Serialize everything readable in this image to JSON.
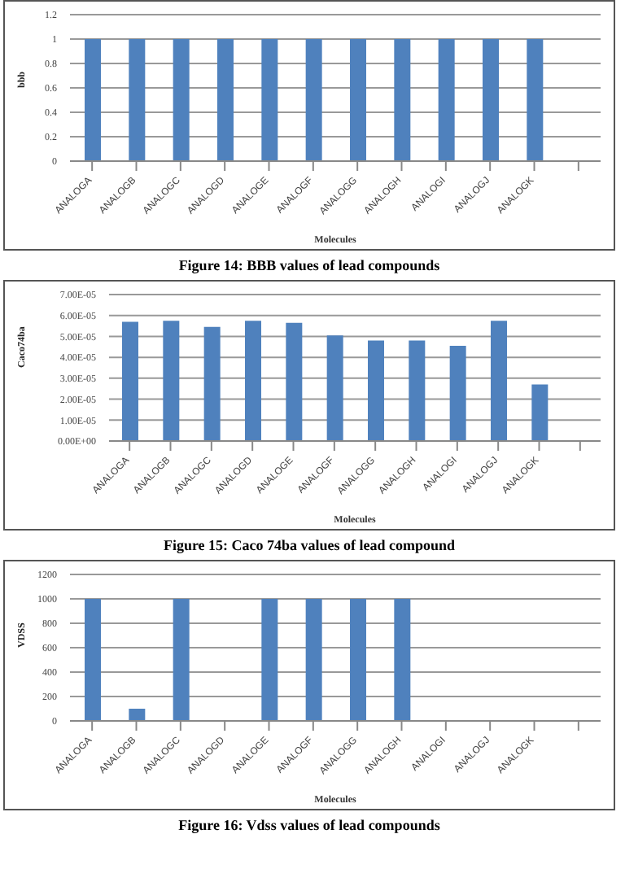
{
  "chart_data": [
    {
      "type": "bar",
      "ylabel": "bbb",
      "xlabel": "Molecules",
      "categories": [
        "ANALOGA",
        "ANALOGB",
        "ANALOGC",
        "ANALOGD",
        "ANALOGE",
        "ANALOGF",
        "ANALOGG",
        "ANALOGH",
        "ANALOGI",
        "ANALOGJ",
        "ANALOGK",
        null
      ],
      "values": [
        1,
        1,
        1,
        1,
        1,
        1,
        1,
        1,
        1,
        1,
        1,
        null
      ],
      "color": "#4f81bd",
      "ylim": [
        0,
        1.2
      ],
      "yticks": [
        0,
        0.2,
        0.4,
        0.6,
        0.8,
        1,
        1.2
      ],
      "grid": "y",
      "legend": false,
      "annotations": [
        "Figure 14: BBB values of lead compounds"
      ]
    },
    {
      "type": "bar",
      "ylabel": "Caco74ba",
      "xlabel": "Molecules",
      "categories": [
        "ANALOGA",
        "ANALOGB",
        "ANALOGC",
        "ANALOGD",
        "ANALOGE",
        "ANALOGF",
        "ANALOGG",
        "ANALOGH",
        "ANALOGI",
        "ANALOGJ",
        "ANALOGK",
        null
      ],
      "values": [
        5.7e-05,
        5.75e-05,
        5.45e-05,
        5.75e-05,
        5.65e-05,
        5.05e-05,
        4.8e-05,
        4.8e-05,
        4.55e-05,
        5.75e-05,
        2.7e-05,
        null
      ],
      "color": "#4f81bd",
      "ylim": [
        0,
        7e-05
      ],
      "yticks": [
        {
          "value": 0,
          "label": "0.00E+00"
        },
        {
          "value": 1e-05,
          "label": "1.00E-05"
        },
        {
          "value": 2e-05,
          "label": "2.00E-05"
        },
        {
          "value": 3e-05,
          "label": "3.00E-05"
        },
        {
          "value": 4e-05,
          "label": "4.00E-05"
        },
        {
          "value": 5e-05,
          "label": "5.00E-05"
        },
        {
          "value": 6e-05,
          "label": "6.00E-05"
        },
        {
          "value": 7e-05,
          "label": "7.00E-05"
        }
      ],
      "grid": "y",
      "legend": false,
      "annotations": [
        "Figure 15: Caco 74ba values of lead compound"
      ]
    },
    {
      "type": "bar",
      "ylabel": "VDSS",
      "xlabel": "Molecules",
      "categories": [
        "ANALOGA",
        "ANALOGB",
        "ANALOGC",
        "ANALOGD",
        "ANALOGE",
        "ANALOGF",
        "ANALOGG",
        "ANALOGH",
        "ANALOGI",
        "ANALOGJ",
        "ANALOGK",
        null
      ],
      "values": [
        1000,
        100,
        1000,
        5,
        1000,
        1000,
        1000,
        1000,
        5,
        5,
        5,
        null
      ],
      "color": "#4f81bd",
      "ylim": [
        0,
        1200
      ],
      "yticks": [
        0,
        200,
        400,
        600,
        800,
        1000,
        1200
      ],
      "grid": "y",
      "legend": false,
      "annotations": [
        "Figure 16: Vdss values of lead compounds"
      ]
    }
  ]
}
